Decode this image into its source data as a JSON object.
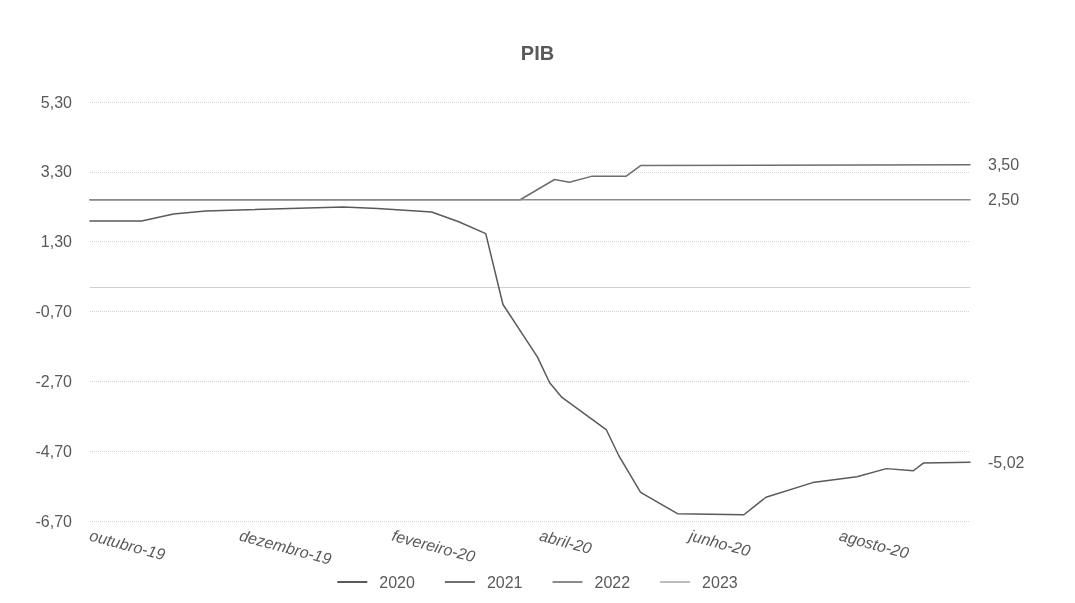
{
  "chart_data": {
    "type": "line",
    "title": "PIB",
    "xlim": [
      "2019-10-01",
      "2020-09-23"
    ],
    "xticks": [
      {
        "value": "2019-10-01",
        "label": "outubro-19"
      },
      {
        "value": "2019-12-01",
        "label": "dezembro-19"
      },
      {
        "value": "2020-02-01",
        "label": "fevereiro-20"
      },
      {
        "value": "2020-04-01",
        "label": "abril-20"
      },
      {
        "value": "2020-06-01",
        "label": "junho-20"
      },
      {
        "value": "2020-08-01",
        "label": "agosto-20"
      }
    ],
    "ylim": [
      -6.7,
      5.3
    ],
    "yticks": [
      {
        "value": -6.7,
        "label": "-6,70"
      },
      {
        "value": -4.7,
        "label": "-4,70"
      },
      {
        "value": -2.7,
        "label": "-2,70"
      },
      {
        "value": -0.7,
        "label": "-0,70"
      },
      {
        "value": 1.3,
        "label": "1,30"
      },
      {
        "value": 3.3,
        "label": "3,30"
      },
      {
        "value": 5.3,
        "label": "5,30"
      }
    ],
    "grid": "y",
    "legend": "bottom",
    "marker": "none",
    "line_style": "solid",
    "series": [
      {
        "name": "2020",
        "color": "#5a5a5a",
        "x": [
          "2019-10-01",
          "2019-10-22",
          "2019-11-04",
          "2019-11-17",
          "2020-01-12",
          "2020-01-26",
          "2020-02-17",
          "2020-02-28",
          "2020-03-10",
          "2020-03-17",
          "2020-03-31",
          "2020-04-05",
          "2020-04-10",
          "2020-04-28",
          "2020-05-03",
          "2020-05-12",
          "2020-05-27",
          "2020-06-23",
          "2020-07-02",
          "2020-07-21",
          "2020-08-08",
          "2020-08-20",
          "2020-08-31",
          "2020-09-04",
          "2020-09-23"
        ],
        "values": [
          1.89,
          1.89,
          2.09,
          2.18,
          2.29,
          2.25,
          2.15,
          1.87,
          1.53,
          -0.5,
          -2.0,
          -2.74,
          -3.16,
          -4.08,
          -4.81,
          -5.88,
          -6.49,
          -6.52,
          -6.02,
          -5.6,
          -5.43,
          -5.2,
          -5.26,
          -5.04,
          -5.02
        ],
        "value_labels": [
          null,
          null,
          null,
          null,
          null,
          null,
          null,
          null,
          null,
          null,
          null,
          null,
          null,
          null,
          null,
          null,
          null,
          null,
          null,
          null,
          null,
          null,
          null,
          null,
          "-5,02"
        ]
      },
      {
        "name": "2021",
        "color": "#6e6e6e",
        "x": [
          "2019-10-01",
          "2020-03-24",
          "2020-04-07",
          "2020-04-13",
          "2020-04-22",
          "2020-05-06",
          "2020-05-12",
          "2020-09-23"
        ],
        "values": [
          2.5,
          2.5,
          3.08,
          3.0,
          3.17,
          3.17,
          3.48,
          3.5
        ],
        "value_labels": [
          null,
          null,
          null,
          null,
          null,
          null,
          null,
          "3,50"
        ]
      },
      {
        "name": "2022",
        "color": "#8c8c8c",
        "x": [
          "2019-10-01",
          "2020-09-23"
        ],
        "values": [
          2.5,
          2.5
        ],
        "value_labels": [
          null,
          "2,50"
        ]
      },
      {
        "name": "2023",
        "color": "#bdbdbd"
      }
    ]
  }
}
